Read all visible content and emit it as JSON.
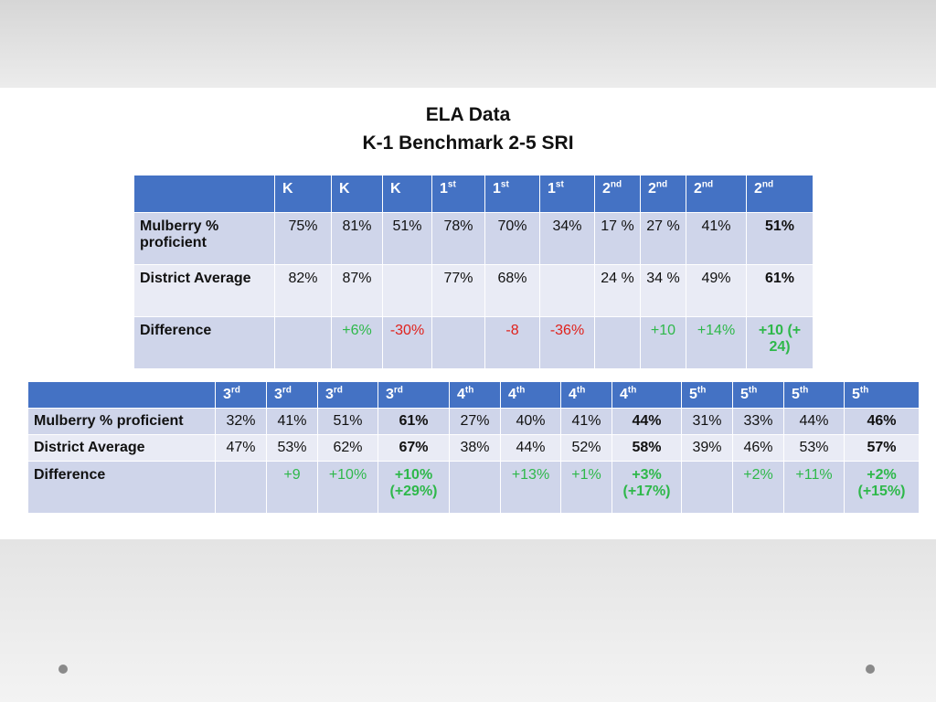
{
  "slide": {
    "title_line1": "ELA Data",
    "title_line2": "K-1 Benchmark  2-5 SRI"
  },
  "table_k2": {
    "headers": [
      {
        "base": "K",
        "sup": ""
      },
      {
        "base": "K",
        "sup": ""
      },
      {
        "base": "K",
        "sup": ""
      },
      {
        "base": "1",
        "sup": "st"
      },
      {
        "base": "1",
        "sup": "st"
      },
      {
        "base": "1",
        "sup": "st"
      },
      {
        "base": "2",
        "sup": "nd"
      },
      {
        "base": "2",
        "sup": "nd"
      },
      {
        "base": "2",
        "sup": "nd"
      },
      {
        "base": "2",
        "sup": "nd"
      }
    ],
    "rows": [
      {
        "label": "Mulberry % proficient",
        "cells": [
          "75%",
          "81%",
          "51%",
          "78%",
          "70%",
          "34%",
          "17 %",
          "27 %",
          "41%",
          "51%"
        ]
      },
      {
        "label": "District Average",
        "cells": [
          "82%",
          "87%",
          "",
          "77%",
          "68%",
          "",
          "24 %",
          "34 %",
          "49%",
          "61%"
        ]
      },
      {
        "label": "Difference",
        "cells": [
          "",
          "+6%",
          "-30%",
          "",
          "-8",
          "-36%",
          "",
          "+10",
          "+14%",
          "+10 (+ 24)"
        ]
      }
    ]
  },
  "table_3_5": {
    "headers": [
      {
        "base": "3",
        "sup": "rd"
      },
      {
        "base": "3",
        "sup": "rd"
      },
      {
        "base": "3",
        "sup": "rd"
      },
      {
        "base": "3",
        "sup": "rd"
      },
      {
        "base": "4",
        "sup": "th"
      },
      {
        "base": "4",
        "sup": "th"
      },
      {
        "base": "4",
        "sup": "th"
      },
      {
        "base": "4",
        "sup": "th"
      },
      {
        "base": "5",
        "sup": "th"
      },
      {
        "base": "5",
        "sup": "th"
      },
      {
        "base": "5",
        "sup": "th"
      },
      {
        "base": "5",
        "sup": "th"
      }
    ],
    "rows": [
      {
        "label": "Mulberry % proficient",
        "cells": [
          "32%",
          "41%",
          "51%",
          "61%",
          "27%",
          "40%",
          "41%",
          "44%",
          "31%",
          "33%",
          "44%",
          "46%"
        ]
      },
      {
        "label": "District Average",
        "cells": [
          "47%",
          "53%",
          "62%",
          "67%",
          "38%",
          "44%",
          "52%",
          "58%",
          "39%",
          "46%",
          "53%",
          "57%"
        ]
      },
      {
        "label": "Difference",
        "cells": [
          "",
          "+9",
          "+10%",
          "+10% (+29%)",
          "",
          "+13%",
          "+1%",
          "+3% (+17%)",
          "",
          "+2%",
          "+11%",
          "+2% (+15%)"
        ]
      }
    ]
  },
  "colors": {
    "header_blue": "#4472c4",
    "row_dark": "#cfd5ea",
    "row_light": "#e9ebf5",
    "positive_green": "#2eb84a",
    "negative_red": "#e0211b"
  }
}
